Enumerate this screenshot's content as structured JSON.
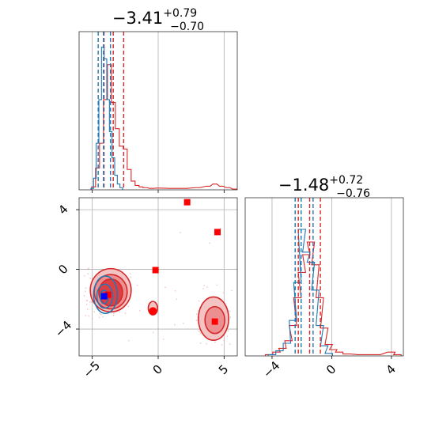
{
  "chart_data": [
    {
      "type": "histogram",
      "panel": "top-left",
      "title_main": "−3.41",
      "title_sup": "+0.79",
      "title_sub": "−0.70",
      "xlim": [
        -6,
        6
      ],
      "grid": true,
      "series": [
        {
          "color": "#d62728",
          "bins": [
            [
              -4.9,
              0.02
            ],
            [
              -4.6,
              0.15
            ],
            [
              -4.3,
              0.32
            ],
            [
              -4.0,
              0.62
            ],
            [
              -3.7,
              0.86
            ],
            [
              -3.4,
              0.6
            ],
            [
              -3.1,
              0.42
            ],
            [
              -2.8,
              0.3
            ],
            [
              -2.5,
              0.28
            ],
            [
              -2.2,
              0.14
            ],
            [
              -1.9,
              0.06
            ],
            [
              -1.6,
              0.03
            ],
            [
              -1.3,
              0.02
            ],
            [
              -1.0,
              0.015
            ],
            [
              -0.5,
              0.01
            ],
            [
              0.0,
              0.012
            ],
            [
              1.0,
              0.01
            ],
            [
              2.0,
              0.01
            ],
            [
              3.0,
              0.015
            ],
            [
              3.8,
              0.025
            ],
            [
              4.3,
              0.04
            ],
            [
              4.8,
              0.025
            ],
            [
              5.3,
              0.015
            ],
            [
              5.8,
              0.005
            ]
          ],
          "quantiles": [
            -4.11,
            -3.41,
            -2.62
          ]
        },
        {
          "color": "#1f77b4",
          "bins": [
            [
              -5.0,
              0.01
            ],
            [
              -4.8,
              0.08
            ],
            [
              -4.6,
              0.32
            ],
            [
              -4.4,
              0.62
            ],
            [
              -4.2,
              0.98
            ],
            [
              -4.0,
              0.9
            ],
            [
              -3.8,
              0.62
            ],
            [
              -3.6,
              0.4
            ],
            [
              -3.4,
              0.22
            ],
            [
              -3.2,
              0.1
            ],
            [
              -3.0,
              0.04
            ],
            [
              -2.8,
              0.015
            ]
          ],
          "quantiles": [
            -4.55,
            -4.15,
            -3.62
          ]
        }
      ]
    },
    {
      "type": "scatter",
      "panel": "bottom-left",
      "xlim": [
        -6,
        6
      ],
      "ylim": [
        -5.8,
        4.8
      ],
      "xticks": [
        "−5",
        "0",
        "5"
      ],
      "yticks": [
        "−4",
        "0",
        "4"
      ],
      "grid": true,
      "markers": [
        {
          "color": "#ff0000",
          "shape": "square",
          "x": 2.2,
          "y": 4.5
        },
        {
          "color": "#ff0000",
          "shape": "square",
          "x": 4.5,
          "y": 2.5
        },
        {
          "color": "#ff0000",
          "shape": "square",
          "x": -0.2,
          "y": -0.05
        },
        {
          "color": "#ff0000",
          "shape": "square",
          "x": -3.8,
          "y": -1.7
        },
        {
          "color": "#ff0000",
          "shape": "square",
          "x": 4.3,
          "y": -3.5
        },
        {
          "color": "#ff0000",
          "shape": "circle",
          "x": -0.4,
          "y": -2.8
        },
        {
          "color": "#0000ff",
          "shape": "square",
          "x": -4.1,
          "y": -1.8
        }
      ],
      "red_contours": [
        {
          "cx": -3.6,
          "cy": -1.4,
          "rx": 1.55,
          "ry": 1.45,
          "level": "outer"
        },
        {
          "cx": -3.6,
          "cy": -1.5,
          "rx": 1.25,
          "ry": 1.15,
          "level": "middle"
        },
        {
          "cx": -3.6,
          "cy": -1.55,
          "rx": 0.9,
          "ry": 0.9,
          "level": "inner"
        },
        {
          "cx": 4.2,
          "cy": -3.3,
          "rx": 1.15,
          "ry": 1.45,
          "level": "outer"
        },
        {
          "cx": 4.3,
          "cy": -3.4,
          "rx": 0.75,
          "ry": 0.9,
          "level": "middle"
        },
        {
          "cx": -0.4,
          "cy": -2.6,
          "rx": 0.35,
          "ry": 0.45,
          "level": "outer"
        }
      ],
      "blue_contours": [
        {
          "cx": -4.0,
          "cy": -1.7,
          "rx": 0.9,
          "ry": 1.25
        },
        {
          "cx": -4.05,
          "cy": -1.8,
          "rx": 0.6,
          "ry": 0.8
        },
        {
          "cx": -4.1,
          "cy": -1.85,
          "rx": 0.3,
          "ry": 0.45
        }
      ]
    },
    {
      "type": "histogram",
      "panel": "bottom-right",
      "title_main": "−1.48",
      "title_sup": "+0.72",
      "title_sub": "−0.76",
      "xlim": [
        -5.8,
        4.8
      ],
      "xticks": [
        "−4",
        "0",
        "4"
      ],
      "grid": true,
      "series": [
        {
          "color": "#d62728",
          "bins": [
            [
              -4.2,
              0.01
            ],
            [
              -3.7,
              0.03
            ],
            [
              -3.3,
              0.06
            ],
            [
              -2.9,
              0.12
            ],
            [
              -2.6,
              0.24
            ],
            [
              -2.3,
              0.46
            ],
            [
              -2.0,
              0.66
            ],
            [
              -1.7,
              0.8
            ],
            [
              -1.4,
              0.9
            ],
            [
              -1.1,
              0.72
            ],
            [
              -0.8,
              0.46
            ],
            [
              -0.5,
              0.22
            ],
            [
              -0.2,
              0.09
            ],
            [
              0.1,
              0.05
            ],
            [
              0.5,
              0.03
            ],
            [
              1.0,
              0.015
            ],
            [
              2.0,
              0.01
            ],
            [
              3.0,
              0.01
            ],
            [
              4.0,
              0.03
            ],
            [
              4.4,
              0.01
            ]
          ],
          "quantiles": [
            -2.24,
            -1.48,
            -0.76
          ]
        },
        {
          "color": "#1f77b4",
          "bins": [
            [
              -4.0,
              0.01
            ],
            [
              -3.5,
              0.04
            ],
            [
              -3.0,
              0.1
            ],
            [
              -2.6,
              0.28
            ],
            [
              -2.3,
              0.58
            ],
            [
              -2.0,
              1.0
            ],
            [
              -1.7,
              0.82
            ],
            [
              -1.4,
              0.74
            ],
            [
              -1.1,
              0.52
            ],
            [
              -0.8,
              0.24
            ],
            [
              -0.5,
              0.08
            ],
            [
              -0.2,
              0.02
            ]
          ],
          "quantiles": [
            -2.45,
            -2.05,
            -1.25
          ]
        }
      ]
    }
  ]
}
